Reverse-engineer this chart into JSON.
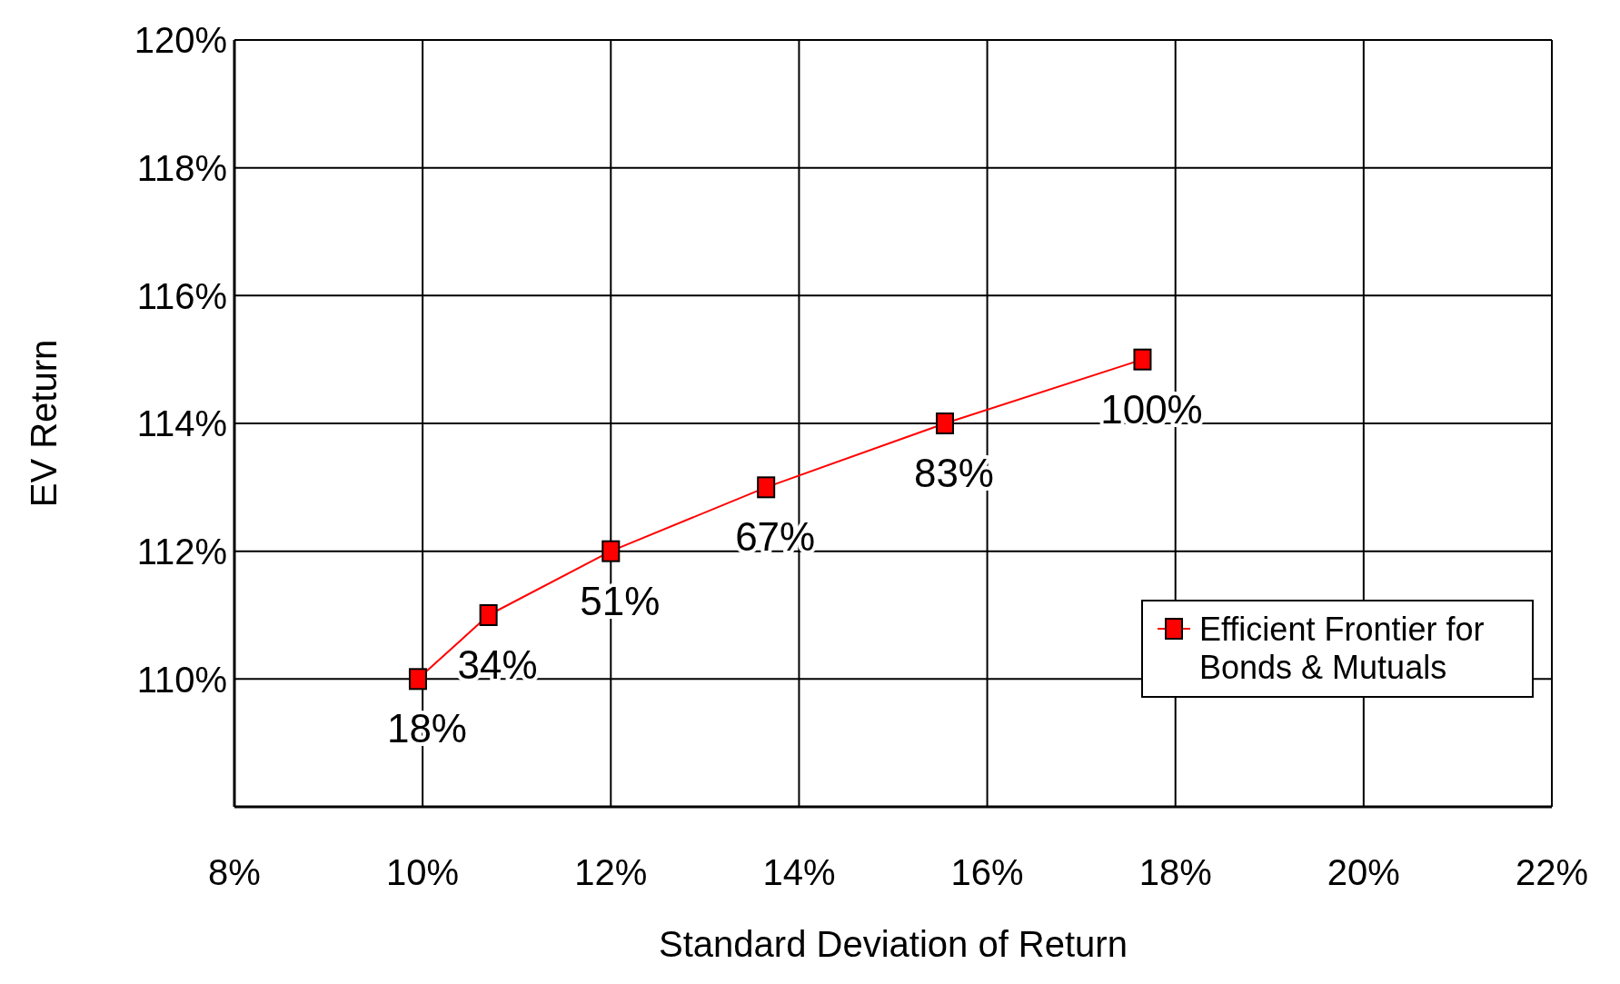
{
  "chart_data": {
    "type": "line",
    "xlabel": "Standard Deviation of Return",
    "ylabel": "EV Return",
    "x": [
      9.95,
      10.7,
      12.0,
      13.65,
      15.55,
      17.65
    ],
    "series": [
      {
        "name": "Efficient Frontier for Bonds & Mutuals",
        "color": "#ff0000",
        "values": [
          110,
          111,
          112,
          113,
          114,
          115
        ]
      }
    ],
    "xlim": [
      8,
      22
    ],
    "ylim": [
      108,
      120
    ],
    "xticks": [
      {
        "value": 8,
        "label": "8%"
      },
      {
        "value": 10,
        "label": "10%"
      },
      {
        "value": 12,
        "label": "12%"
      },
      {
        "value": 14,
        "label": "14%"
      },
      {
        "value": 16,
        "label": "16%"
      },
      {
        "value": 18,
        "label": "18%"
      },
      {
        "value": 20,
        "label": "20%"
      },
      {
        "value": 22,
        "label": "22%"
      }
    ],
    "yticks": [
      {
        "value": 110,
        "label": "110%"
      },
      {
        "value": 112,
        "label": "112%"
      },
      {
        "value": 114,
        "label": "114%"
      },
      {
        "value": 116,
        "label": "116%"
      },
      {
        "value": 118,
        "label": "118%"
      },
      {
        "value": 120,
        "label": "120%"
      }
    ],
    "annotations": [
      {
        "text": "18%",
        "x": 9.95,
        "y": 110
      },
      {
        "text": "34%",
        "x": 10.7,
        "y": 111
      },
      {
        "text": "51%",
        "x": 12.0,
        "y": 112
      },
      {
        "text": "67%",
        "x": 13.65,
        "y": 113
      },
      {
        "text": "83%",
        "x": 15.55,
        "y": 114
      },
      {
        "text": "100%",
        "x": 17.65,
        "y": 115
      }
    ],
    "grid": true,
    "legend": "bottom right",
    "marker": "square",
    "line_style": "solid"
  }
}
